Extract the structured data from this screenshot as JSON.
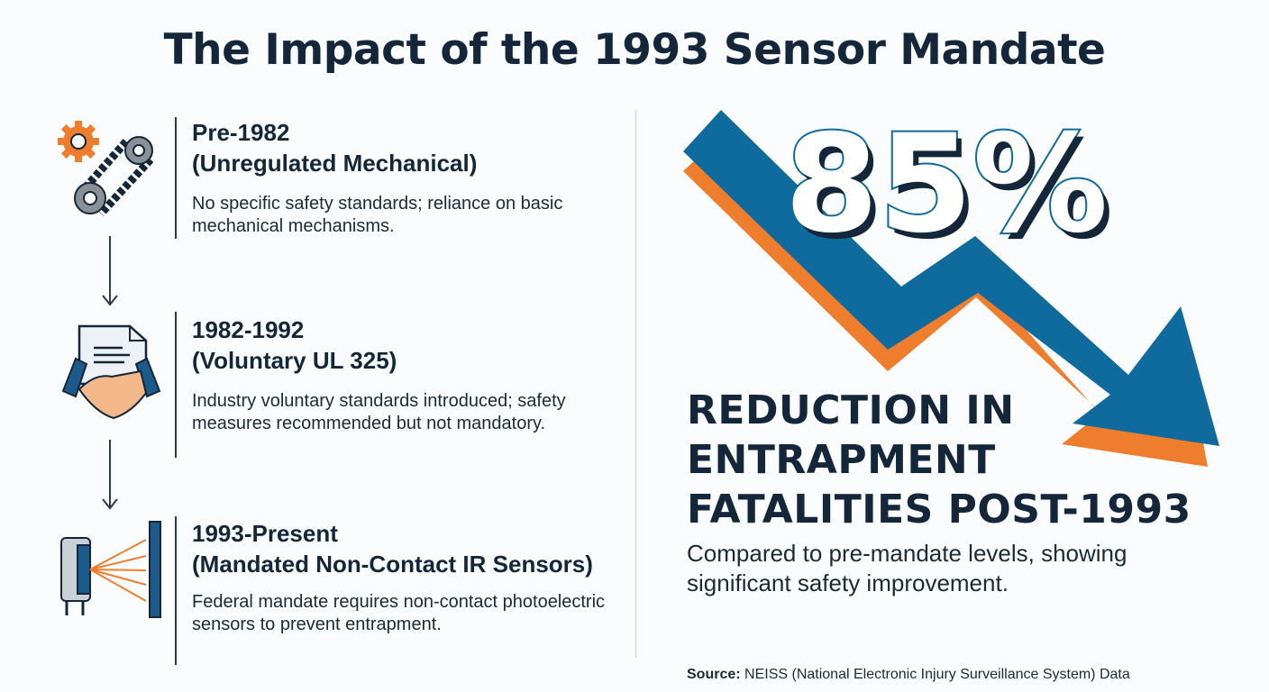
{
  "title": "The Impact of the 1993 Sensor Mandate",
  "timeline": [
    {
      "period": "Pre-1982",
      "label": "(Unregulated Mechanical)",
      "description": "No specific safety standards; reliance on basic mechanical mechanisms.",
      "icon": "gear-chain-icon"
    },
    {
      "period": "1982-1992",
      "label": "(Voluntary UL 325)",
      "description": "Industry voluntary standards introduced; safety measures recommended but not mandatory.",
      "icon": "document-handshake-icon"
    },
    {
      "period": "1993-Present",
      "label": "(Mandated Non-Contact IR Sensors)",
      "description": "Federal mandate requires non-contact photoelectric sensors to prevent entrapment.",
      "icon": "ir-sensor-icon"
    }
  ],
  "stat": {
    "value": "85%",
    "headline_lines": [
      "REDUCTION IN",
      "ENTRAPMENT",
      "FATALITIES POST-1993"
    ],
    "subtext_lines": [
      "Compared to pre-mandate levels, showing",
      "significant safety improvement."
    ]
  },
  "source": {
    "label": "Source:",
    "text": "NEISS (National Electronic Injury Surveillance System) Data"
  },
  "colors": {
    "navy": "#13263a",
    "blue": "#0f6a9e",
    "orange": "#ee7d2e"
  }
}
